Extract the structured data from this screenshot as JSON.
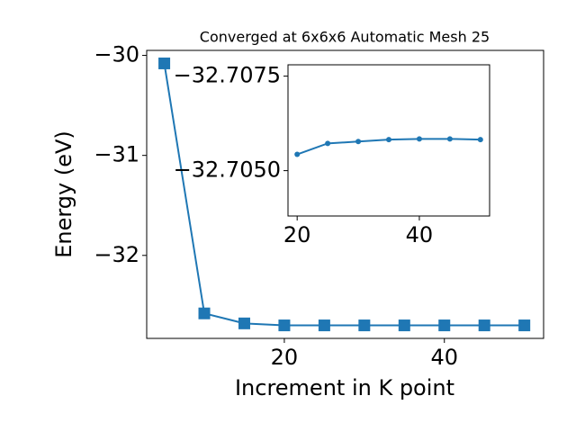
{
  "chart_data": [
    {
      "type": "line",
      "title": "Converged at 6x6x6 Automatic Mesh 25",
      "x_label": "Increment in K point",
      "y_label": "Energy (eV)",
      "x": [
        5,
        10,
        15,
        20,
        25,
        30,
        35,
        40,
        45,
        50
      ],
      "values": [
        -30.08,
        -32.58,
        -32.68,
        -32.7,
        -32.7,
        -32.7,
        -32.7,
        -32.7,
        -32.7,
        -32.7
      ],
      "color": "#1f77b4",
      "marker": "square",
      "xlim": [
        2.8,
        52.4
      ],
      "ylim": [
        -32.83,
        -29.95
      ],
      "xticks": [
        20,
        40
      ],
      "yticks": [
        {
          "value": -32,
          "label": "−32"
        },
        {
          "value": -31,
          "label": "−31"
        },
        {
          "value": -30,
          "label": "−30"
        }
      ]
    },
    {
      "type": "line",
      "x": [
        20,
        25,
        30,
        35,
        40,
        45,
        50
      ],
      "values": [
        -32.70543,
        -32.70572,
        -32.70577,
        -32.70582,
        -32.70584,
        -32.70584,
        -32.70582
      ],
      "color": "#1f77b4",
      "marker": "circle",
      "xlim": [
        18.5,
        51.5
      ],
      "ylim": [
        -32.7038,
        -32.7078
      ],
      "xticks": [
        20,
        40
      ],
      "yticks": [
        {
          "value": -32.705,
          "label": "−32.7050"
        },
        {
          "value": -32.7075,
          "label": "−32.7075"
        }
      ]
    }
  ]
}
